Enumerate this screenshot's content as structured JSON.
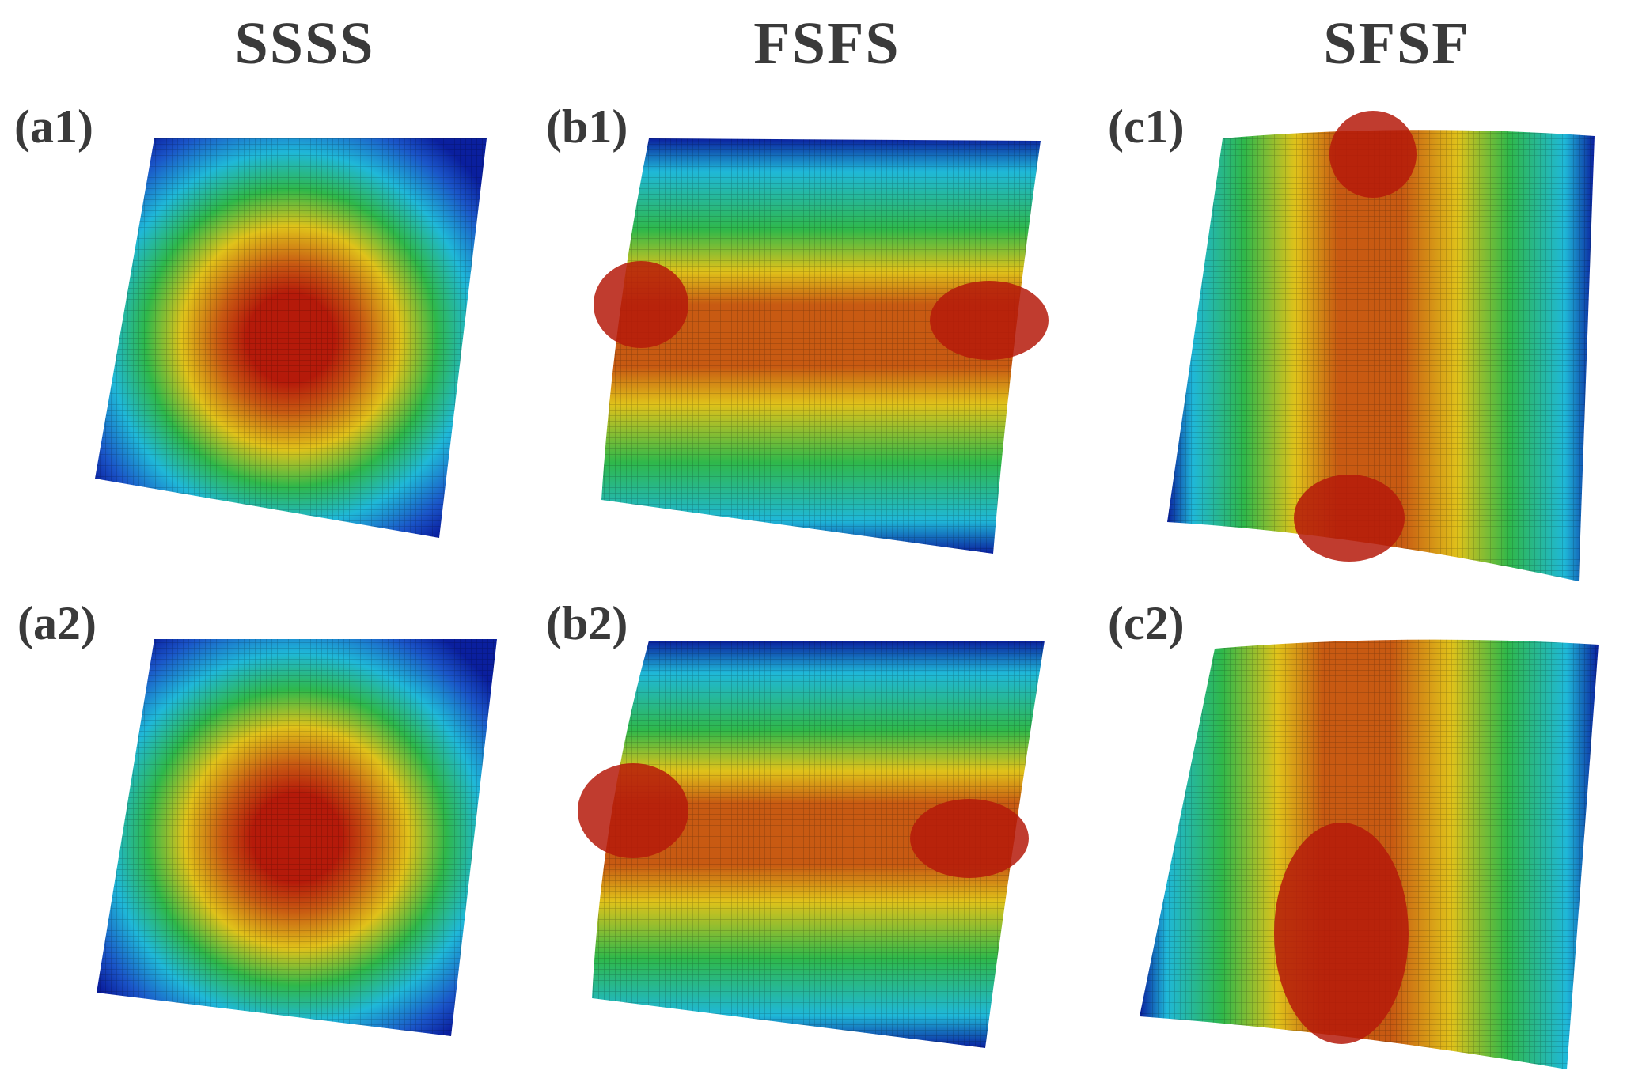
{
  "columns": [
    {
      "title": "SSSS"
    },
    {
      "title": "FSFS"
    },
    {
      "title": "SFSF"
    }
  ],
  "panels": [
    {
      "label": "(a1)",
      "pattern": "ssss"
    },
    {
      "label": "(b1)",
      "pattern": "fsfs"
    },
    {
      "label": "(c1)",
      "pattern": "sfsf"
    },
    {
      "label": "(a2)",
      "pattern": "ssss"
    },
    {
      "label": "(b2)",
      "pattern": "fsfs"
    },
    {
      "label": "(c2)",
      "pattern": "sfsf2"
    }
  ],
  "colors": {
    "low": "#0a1f9e",
    "mid_low": "#1fb8d8",
    "mid": "#2fb84a",
    "mid_high": "#e0c21a",
    "high": "#b51a0a"
  }
}
